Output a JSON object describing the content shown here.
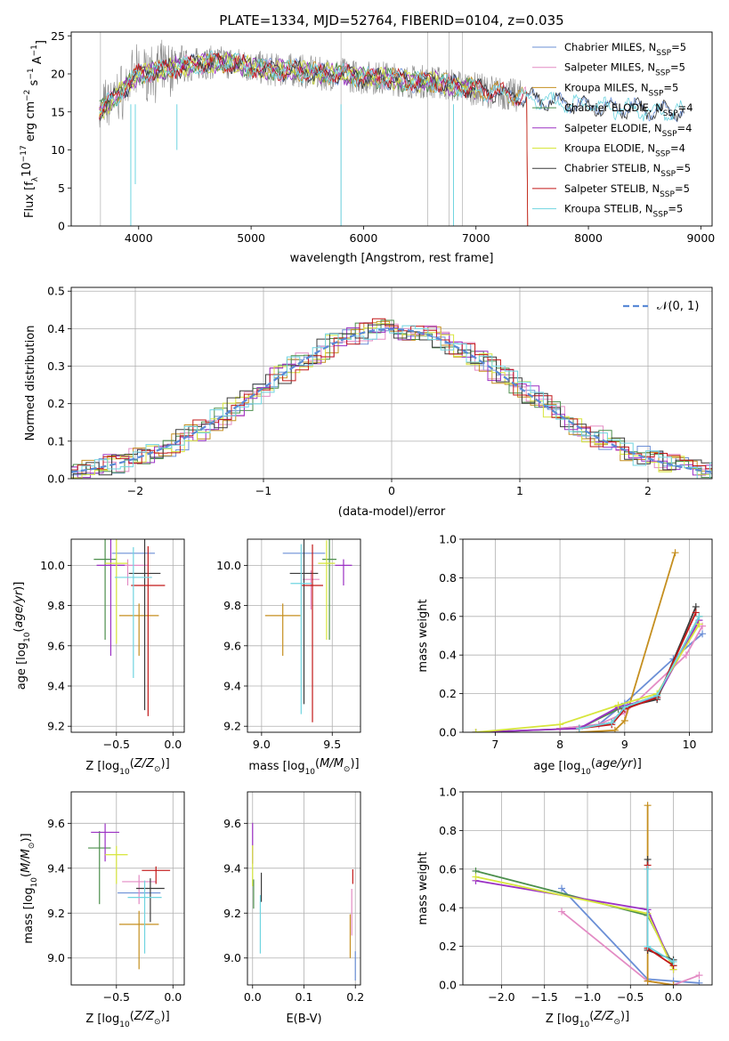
{
  "title": "PLATE=1334, MJD=52764, FIBERID=0104, z=0.035",
  "colors": [
    "#6b8fd6",
    "#e38bc4",
    "#c58f1f",
    "#4c8f4c",
    "#9b30c4",
    "#d7e63c",
    "#3a3a3a",
    "#c21818",
    "#6fd4e0"
  ],
  "chart_data": [
    {
      "type": "line",
      "name": "spectrum",
      "xlabel": "wavelength [Angstrom, rest frame]",
      "ylabel": "Flux [f",
      "ylabel_sub": "λ",
      "ylabel_rest": "10",
      "ylabel_sup1": "−17",
      "ylabel_mid": " erg cm",
      "ylabel_sup2": "−2",
      "ylabel_s": " s",
      "ylabel_sup3": "−1",
      "ylabel_A": " A",
      "ylabel_sup4": "−1",
      "ylabel_end": "]",
      "xlim": [
        3400,
        9100
      ],
      "ylim": [
        0,
        25.5
      ],
      "xticks": [
        "4000",
        "5000",
        "6000",
        "7000",
        "8000",
        "9000"
      ],
      "xtick_values": [
        4000,
        5000,
        6000,
        7000,
        8000,
        9000
      ],
      "yticks": [
        "0",
        "5",
        "10",
        "15",
        "20",
        "25"
      ],
      "ytick_values": [
        0,
        5,
        10,
        15,
        20,
        25
      ],
      "legend": "top-right",
      "series": [
        {
          "name": "Chabrier MILES, N",
          "nssp": "=5"
        },
        {
          "name": "Salpeter MILES, N",
          "nssp": "=5"
        },
        {
          "name": "Kroupa MILES, N",
          "nssp": "=5"
        },
        {
          "name": "Chabrier ELODIE, N",
          "nssp": "=4"
        },
        {
          "name": "Salpeter ELODIE, N",
          "nssp": "=4"
        },
        {
          "name": "Kroupa ELODIE, N",
          "nssp": "=4"
        },
        {
          "name": "Chabrier STELIB, N",
          "nssp": "=5"
        },
        {
          "name": "Salpeter STELIB, N",
          "nssp": "=5"
        },
        {
          "name": "Kroupa STELIB, N",
          "nssp": "=5"
        }
      ],
      "ssp_sub": "SSP",
      "model_envelope": {
        "x": [
          3650,
          3800,
          4000,
          4200,
          4400,
          4600,
          4800,
          5000,
          5200,
          5400,
          5600,
          5800,
          6000,
          6200,
          6400,
          6600,
          6800,
          7000,
          7200,
          7400,
          7600,
          7800,
          8000,
          8200,
          8400,
          8600,
          8800
        ],
        "y": [
          15,
          17,
          20,
          20.5,
          21,
          21.5,
          21.5,
          21,
          20.5,
          20.5,
          20,
          20,
          19.5,
          19.5,
          19,
          19,
          18.5,
          18,
          17.5,
          17,
          16.5,
          16,
          16,
          15.5,
          15.5,
          15,
          15
        ]
      }
    },
    {
      "type": "line",
      "name": "residual-histogram",
      "xlabel": "(data-model)/error",
      "ylabel": "Normed distribution",
      "xlim": [
        -2.5,
        2.5
      ],
      "ylim": [
        0,
        0.51
      ],
      "xticks": [
        "−2",
        "−1",
        "0",
        "1",
        "2"
      ],
      "xtick_values": [
        -2,
        -1,
        0,
        1,
        2
      ],
      "yticks": [
        "0.0",
        "0.1",
        "0.2",
        "0.3",
        "0.4",
        "0.5"
      ],
      "ytick_values": [
        0,
        0.1,
        0.2,
        0.3,
        0.4,
        0.5
      ],
      "legend_label": "𝒩(0, 1)",
      "legend": "top-right"
    },
    {
      "type": "scatter",
      "name": "age-vs-Z",
      "xlabel": "Z [log",
      "xlabel_sub": "10",
      "xlabel_rest": "(Z/Z",
      "xlabel_sun": "⊙",
      "xlabel_end": ")]",
      "ylabel": "age  [log",
      "ylabel_sub": "10",
      "ylabel_rest": "(age/yr)]",
      "xlim": [
        -0.9,
        0.1
      ],
      "ylim": [
        9.17,
        10.13
      ],
      "xticks": [
        "−0.5",
        "0.0"
      ],
      "xtick_values": [
        -0.5,
        0
      ],
      "yticks": [
        "9.2",
        "9.4",
        "9.6",
        "9.8",
        "10.0"
      ],
      "ytick_values": [
        9.2,
        9.4,
        9.6,
        9.8,
        10.0
      ],
      "points": [
        {
          "c": 0,
          "x": -0.35,
          "y": 10.06,
          "xe": 0.38,
          "ye": 0.0
        },
        {
          "c": 1,
          "x": -0.4,
          "y": 10.0,
          "xe": 0.35,
          "ye": 0.1
        },
        {
          "c": 2,
          "x": -0.3,
          "y": 9.75,
          "xe": 0.35,
          "ye": 0.2
        },
        {
          "c": 3,
          "x": -0.6,
          "y": 10.03,
          "xe": 0.2,
          "ye": 0.4
        },
        {
          "c": 4,
          "x": -0.55,
          "y": 10.0,
          "xe": 0.25,
          "ye": 0.45
        },
        {
          "c": 5,
          "x": -0.5,
          "y": 10.01,
          "xe": 0.2,
          "ye": 0.4
        },
        {
          "c": 6,
          "x": -0.25,
          "y": 9.96,
          "xe": 0.28,
          "ye": 0.68
        },
        {
          "c": 7,
          "x": -0.22,
          "y": 9.9,
          "xe": 0.3,
          "ye": 0.65
        },
        {
          "c": 8,
          "x": -0.35,
          "y": 9.94,
          "xe": 0.33,
          "ye": 0.5
        }
      ]
    },
    {
      "type": "scatter",
      "name": "age-vs-mass",
      "xlabel": "mass [log",
      "xlabel_sub": "10",
      "xlabel_rest": "(M/M",
      "xlabel_sun": "⊙",
      "xlabel_end": ")]",
      "xlim": [
        8.9,
        9.7
      ],
      "ylim": [
        9.17,
        10.13
      ],
      "xticks": [
        "9.0",
        "9.5"
      ],
      "xtick_values": [
        9.0,
        9.5
      ],
      "yticks": [
        "9.2",
        "9.4",
        "9.6",
        "9.8",
        "10.0"
      ],
      "ytick_values": [
        9.2,
        9.4,
        9.6,
        9.8,
        10.0
      ],
      "points": [
        {
          "c": 0,
          "x": 9.3,
          "y": 10.06,
          "xe": 0.3,
          "ye": 0.02
        },
        {
          "c": 1,
          "x": 9.35,
          "y": 9.93,
          "xe": 0.12,
          "ye": 0.15
        },
        {
          "c": 2,
          "x": 9.15,
          "y": 9.75,
          "xe": 0.25,
          "ye": 0.2
        },
        {
          "c": 3,
          "x": 9.48,
          "y": 10.03,
          "xe": 0.1,
          "ye": 0.4
        },
        {
          "c": 4,
          "x": 9.58,
          "y": 10.0,
          "xe": 0.12,
          "ye": 0.1
        },
        {
          "c": 5,
          "x": 9.46,
          "y": 10.01,
          "xe": 0.12,
          "ye": 0.38
        },
        {
          "c": 6,
          "x": 9.3,
          "y": 9.96,
          "xe": 0.2,
          "ye": 0.65
        },
        {
          "c": 7,
          "x": 9.36,
          "y": 9.9,
          "xe": 0.15,
          "ye": 0.68
        },
        {
          "c": 8,
          "x": 9.28,
          "y": 9.91,
          "xe": 0.15,
          "ye": 0.65
        }
      ]
    },
    {
      "type": "line",
      "name": "mass-weight-vs-age",
      "xlabel": "age  [log",
      "xlabel_sub": "10",
      "xlabel_rest": "(age/yr)]",
      "ylabel": "mass weight",
      "xlim": [
        6.5,
        10.35
      ],
      "ylim": [
        0,
        1.0
      ],
      "xticks": [
        "7",
        "8",
        "9",
        "10"
      ],
      "xtick_values": [
        7,
        8,
        9,
        10
      ],
      "yticks": [
        "0.0",
        "0.2",
        "0.4",
        "0.6",
        "0.8",
        "1.0"
      ],
      "ytick_values": [
        0,
        0.2,
        0.4,
        0.6,
        0.8,
        1.0
      ],
      "series": [
        {
          "c": 0,
          "x": [
            8.0,
            8.6,
            9.0,
            9.75,
            10.2
          ],
          "y": [
            0.02,
            0.04,
            0.15,
            0.38,
            0.51
          ]
        },
        {
          "c": 1,
          "x": [
            8.0,
            8.6,
            9.0,
            9.95,
            10.2
          ],
          "y": [
            0.02,
            0.04,
            0.1,
            0.4,
            0.55
          ]
        },
        {
          "c": 2,
          "x": [
            8.3,
            8.85,
            9.0,
            9.78
          ],
          "y": [
            0.0,
            0.01,
            0.06,
            0.93
          ]
        },
        {
          "c": 3,
          "x": [
            6.7,
            8.3,
            8.9,
            9.5,
            10.15
          ],
          "y": [
            0.0,
            0.02,
            0.12,
            0.19,
            0.6
          ]
        },
        {
          "c": 4,
          "x": [
            6.7,
            8.3,
            8.9,
            9.5,
            10.15
          ],
          "y": [
            0.0,
            0.02,
            0.13,
            0.18,
            0.58
          ]
        },
        {
          "c": 5,
          "x": [
            6.7,
            8.0,
            8.9,
            9.5,
            10.15
          ],
          "y": [
            0.0,
            0.04,
            0.14,
            0.2,
            0.56
          ]
        },
        {
          "c": 6,
          "x": [
            8.3,
            8.8,
            9.0,
            9.5,
            10.1
          ],
          "y": [
            0.02,
            0.05,
            0.13,
            0.17,
            0.65
          ]
        },
        {
          "c": 7,
          "x": [
            8.3,
            8.8,
            9.0,
            9.5,
            10.1
          ],
          "y": [
            0.02,
            0.04,
            0.12,
            0.18,
            0.62
          ]
        },
        {
          "c": 8,
          "x": [
            8.3,
            8.8,
            9.0,
            9.5,
            10.15
          ],
          "y": [
            0.02,
            0.05,
            0.13,
            0.19,
            0.6
          ]
        }
      ]
    },
    {
      "type": "scatter",
      "name": "mass-vs-Z",
      "xlabel": "Z [log",
      "xlabel_sub": "10",
      "xlabel_rest": "(Z/Z",
      "xlabel_sun": "⊙",
      "xlabel_end": ")]",
      "ylabel": "mass [log",
      "ylabel_sub": "10",
      "ylabel_rest": "(M/M",
      "ylabel_sun": "⊙",
      "ylabel_end": ")]",
      "xlim": [
        -0.9,
        0.1
      ],
      "ylim": [
        8.88,
        9.74
      ],
      "xticks": [
        "−0.5",
        "0.0"
      ],
      "xtick_values": [
        -0.5,
        0
      ],
      "yticks": [
        "9.0",
        "9.2",
        "9.4",
        "9.6"
      ],
      "ytick_values": [
        9.0,
        9.2,
        9.4,
        9.6
      ],
      "points": [
        {
          "c": 0,
          "x": -0.3,
          "y": 9.29,
          "xe": 0.38,
          "ye": 0.0
        },
        {
          "c": 1,
          "x": -0.3,
          "y": 9.34,
          "xe": 0.3,
          "ye": 0.1
        },
        {
          "c": 2,
          "x": -0.3,
          "y": 9.15,
          "xe": 0.35,
          "ye": 0.2
        },
        {
          "c": 3,
          "x": -0.65,
          "y": 9.49,
          "xe": 0.2,
          "ye": 0.25
        },
        {
          "c": 4,
          "x": -0.6,
          "y": 9.56,
          "xe": 0.25,
          "ye": 0.13
        },
        {
          "c": 5,
          "x": -0.5,
          "y": 9.46,
          "xe": 0.2,
          "ye": 0.13
        },
        {
          "c": 6,
          "x": -0.2,
          "y": 9.31,
          "xe": 0.25,
          "ye": 0.15
        },
        {
          "c": 7,
          "x": -0.15,
          "y": 9.39,
          "xe": 0.25,
          "ye": 0.06
        },
        {
          "c": 8,
          "x": -0.25,
          "y": 9.27,
          "xe": 0.3,
          "ye": 0.25
        }
      ]
    },
    {
      "type": "scatter",
      "name": "mass-vs-EBV",
      "xlabel": "E(B-V)",
      "xlim": [
        -0.01,
        0.21
      ],
      "ylim": [
        8.88,
        9.74
      ],
      "xticks": [
        "0.0",
        "0.1",
        "0.2"
      ],
      "xtick_values": [
        0,
        0.1,
        0.2
      ],
      "yticks": [
        "9.0",
        "9.2",
        "9.4",
        "9.6"
      ],
      "ytick_values": [
        9.0,
        9.2,
        9.4,
        9.6
      ],
      "points": [
        {
          "c": 4,
          "x": 0.0,
          "y": 9.56,
          "ye": 0.14
        },
        {
          "c": 5,
          "x": 0.0,
          "y": 9.46,
          "ye": 0.14
        },
        {
          "c": 3,
          "x": 0.002,
          "y": 9.32,
          "ye": 0.1
        },
        {
          "c": 8,
          "x": 0.015,
          "y": 9.22,
          "ye": 0.2
        },
        {
          "c": 6,
          "x": 0.017,
          "y": 9.35,
          "ye": 0.1
        },
        {
          "c": 2,
          "x": 0.19,
          "y": 9.15,
          "ye": 0.15
        },
        {
          "c": 1,
          "x": 0.193,
          "y": 9.26,
          "ye": 0.16
        },
        {
          "c": 7,
          "x": 0.195,
          "y": 9.38,
          "ye": 0.05
        },
        {
          "c": 0,
          "x": 0.2,
          "y": 9.0,
          "ye": 0.1
        }
      ]
    },
    {
      "type": "line",
      "name": "mass-weight-vs-Z",
      "xlabel": "Z [log",
      "xlabel_sub": "10",
      "xlabel_rest": "(Z/Z",
      "xlabel_sun": "⊙",
      "xlabel_end": ")]",
      "ylabel": "mass weight",
      "xlim": [
        -2.45,
        0.45
      ],
      "ylim": [
        0,
        1.0
      ],
      "xticks": [
        "−2.0",
        "−1.5",
        "−1.0",
        "−0.5",
        "0.0"
      ],
      "xtick_values": [
        -2.0,
        -1.5,
        -1.0,
        -0.5,
        0.0
      ],
      "yticks": [
        "0.0",
        "0.2",
        "0.4",
        "0.6",
        "0.8",
        "1.0"
      ],
      "ytick_values": [
        0,
        0.2,
        0.4,
        0.6,
        0.8,
        1.0
      ],
      "series": [
        {
          "c": 0,
          "x": [
            -1.3,
            -0.3,
            0.0,
            0.3
          ],
          "y": [
            0.5,
            0.03,
            0.02,
            0.01
          ]
        },
        {
          "c": 1,
          "x": [
            -1.3,
            -0.3,
            0.0,
            0.3
          ],
          "y": [
            0.38,
            0.02,
            0.0,
            0.05
          ]
        },
        {
          "c": 2,
          "x": [
            -0.3,
            -0.3,
            0.0
          ],
          "y": [
            0.93,
            0.02,
            0.0
          ]
        },
        {
          "c": 3,
          "x": [
            -2.3,
            -0.3,
            0.0
          ],
          "y": [
            0.59,
            0.36,
            0.1
          ]
        },
        {
          "c": 4,
          "x": [
            -2.3,
            -0.3,
            0.0
          ],
          "y": [
            0.54,
            0.39,
            0.08
          ]
        },
        {
          "c": 5,
          "x": [
            -2.3,
            -0.3,
            0.0
          ],
          "y": [
            0.56,
            0.37,
            0.08
          ]
        },
        {
          "c": 6,
          "x": [
            -0.3,
            -0.3,
            0.0
          ],
          "y": [
            0.65,
            0.18,
            0.13
          ]
        },
        {
          "c": 7,
          "x": [
            -0.3,
            -0.3,
            0.0
          ],
          "y": [
            0.62,
            0.19,
            0.1
          ]
        },
        {
          "c": 8,
          "x": [
            -0.3,
            -0.3,
            0.0
          ],
          "y": [
            0.6,
            0.2,
            0.12
          ]
        }
      ]
    }
  ]
}
